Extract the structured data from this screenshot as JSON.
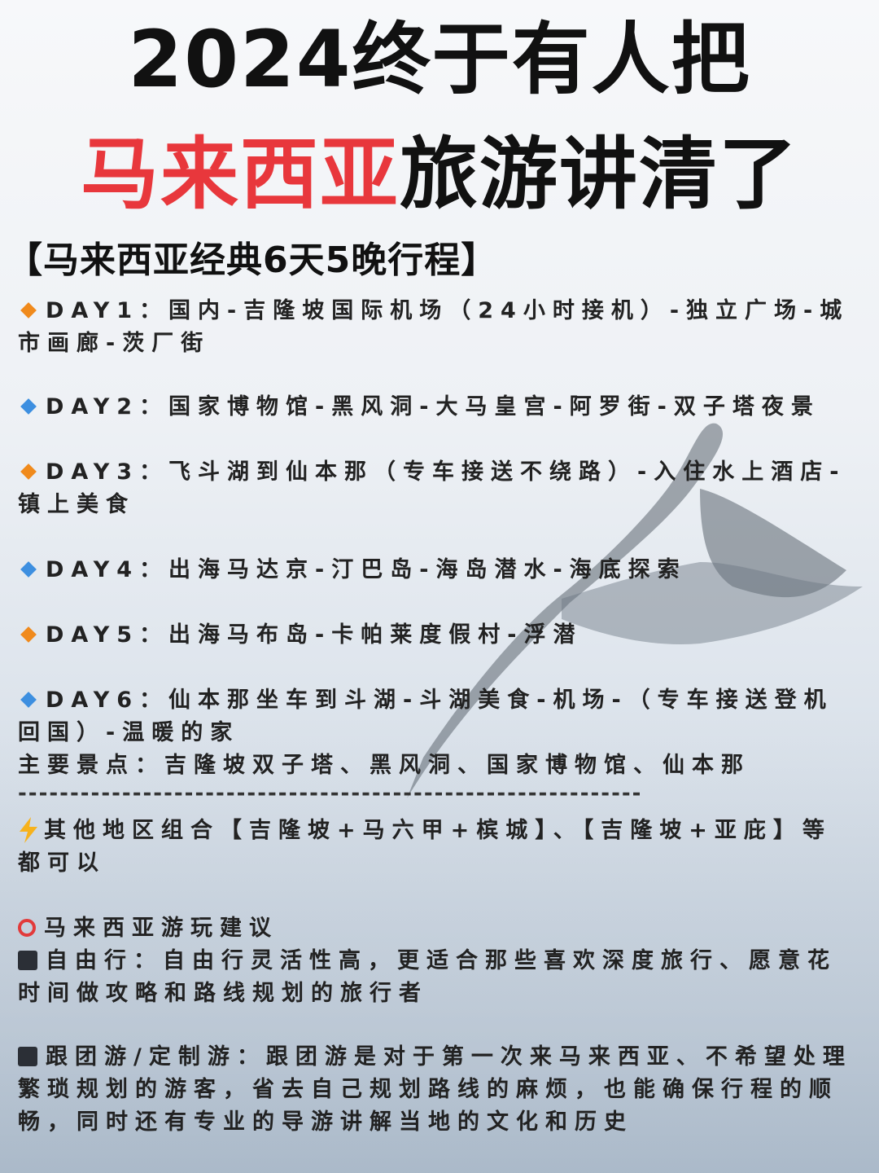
{
  "title": {
    "line1": "2024终于有人把",
    "line2_highlight": "马来西亚",
    "line2_rest": "旅游讲清了"
  },
  "itinerary": {
    "heading": "【马来西亚经典6天5晚行程】",
    "days": [
      {
        "marker": "orange-diamond",
        "text": "DAY1：国内-吉隆坡国际机场（24小时接机）-独立广场-城市画廊-茨厂街"
      },
      {
        "marker": "blue-diamond",
        "text": "DAY2：国家博物馆-黑风洞-大马皇宫-阿罗街-双子塔夜景"
      },
      {
        "marker": "orange-diamond",
        "text": "DAY3：飞斗湖到仙本那（专车接送不绕路）-入住水上酒店-镇上美食"
      },
      {
        "marker": "blue-diamond",
        "text": "DAY4：出海马达京-汀巴岛-海岛潜水-海底探索"
      },
      {
        "marker": "orange-diamond",
        "text": "DAY5：出海马布岛-卡帕莱度假村-浮潜"
      },
      {
        "marker": "blue-diamond",
        "text": "DAY6：仙本那坐车到斗湖-斗湖美食-机场-（专车接送登机回国）-温暖的家"
      }
    ],
    "main_spots": "主要景点：吉隆坡双子塔、黑风洞、国家博物馆、仙本那"
  },
  "divider": "------------------------------------------------------------",
  "other_regions": "其他地区组合【吉隆坡+马六甲+槟城】、【吉隆坡+亚庇】等都可以",
  "advice": {
    "heading": "马来西亚游玩建议",
    "items": [
      "自由行：自由行灵活性高，更适合那些喜欢深度旅行、愿意花时间做攻略和路线规划的旅行者",
      "跟团游/定制游：跟团游是对于第一次来马来西亚、不希望处理繁琐规划的游客，省去自己规划路线的麻烦，也能确保行程的顺畅，同时还有专业的导游讲解当地的文化和历史"
    ]
  },
  "colors": {
    "title_red": "#e8373c",
    "orange_marker": "#f08a1c",
    "blue_marker": "#3d8fe0",
    "ring_red": "#e23a3a"
  }
}
